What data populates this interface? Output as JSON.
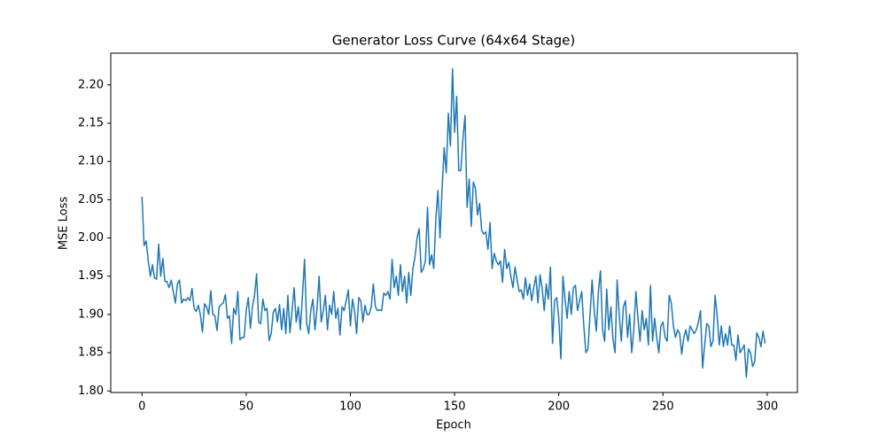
{
  "chart_data": {
    "type": "line",
    "title": "Generator Loss Curve (64x64 Stage)",
    "x_label": "Epoch",
    "y_label": "MSE Loss",
    "x": [
      0,
      1,
      2,
      3,
      4,
      5,
      6,
      7,
      8,
      9,
      10,
      11,
      12,
      13,
      14,
      15,
      16,
      17,
      18,
      19,
      20,
      21,
      22,
      23,
      24,
      25,
      26,
      27,
      28,
      29,
      30,
      31,
      32,
      33,
      34,
      35,
      36,
      37,
      38,
      39,
      40,
      41,
      42,
      43,
      44,
      45,
      46,
      47,
      48,
      49,
      50,
      51,
      52,
      53,
      54,
      55,
      56,
      57,
      58,
      59,
      60,
      61,
      62,
      63,
      64,
      65,
      66,
      67,
      68,
      69,
      70,
      71,
      72,
      73,
      74,
      75,
      76,
      77,
      78,
      79,
      80,
      81,
      82,
      83,
      84,
      85,
      86,
      87,
      88,
      89,
      90,
      91,
      92,
      93,
      94,
      95,
      96,
      97,
      98,
      99,
      100,
      101,
      102,
      103,
      104,
      105,
      106,
      107,
      108,
      109,
      110,
      111,
      112,
      113,
      114,
      115,
      116,
      117,
      118,
      119,
      120,
      121,
      122,
      123,
      124,
      125,
      126,
      127,
      128,
      129,
      130,
      131,
      132,
      133,
      134,
      135,
      136,
      137,
      138,
      139,
      140,
      141,
      142,
      143,
      144,
      145,
      146,
      147,
      148,
      149,
      150,
      151,
      152,
      153,
      154,
      155,
      156,
      157,
      158,
      159,
      160,
      161,
      162,
      163,
      164,
      165,
      166,
      167,
      168,
      169,
      170,
      171,
      172,
      173,
      174,
      175,
      176,
      177,
      178,
      179,
      180,
      181,
      182,
      183,
      184,
      185,
      186,
      187,
      188,
      189,
      190,
      191,
      192,
      193,
      194,
      195,
      196,
      197,
      198,
      199,
      200,
      201,
      202,
      203,
      204,
      205,
      206,
      207,
      208,
      209,
      210,
      211,
      212,
      213,
      214,
      215,
      216,
      217,
      218,
      219,
      220,
      221,
      222,
      223,
      224,
      225,
      226,
      227,
      228,
      229,
      230,
      231,
      232,
      233,
      234,
      235,
      236,
      237,
      238,
      239,
      240,
      241,
      242,
      243,
      244,
      245,
      246,
      247,
      248,
      249,
      250,
      251,
      252,
      253,
      254,
      255,
      256,
      257,
      258,
      259,
      260,
      261,
      262,
      263,
      264,
      265,
      266,
      267,
      268,
      269,
      270,
      271,
      272,
      273,
      274,
      275,
      276,
      277,
      278,
      279,
      280,
      281,
      282,
      283,
      284,
      285,
      286,
      287,
      288,
      289,
      290,
      291,
      292,
      293,
      294,
      295,
      296,
      297,
      298,
      299
    ],
    "series": [
      {
        "color": "#1f77b4",
        "values": [
          2.054,
          1.99,
          1.996,
          1.97,
          1.95,
          1.965,
          1.948,
          1.946,
          1.992,
          1.95,
          1.973,
          1.943,
          1.943,
          1.935,
          1.945,
          1.93,
          1.915,
          1.94,
          1.945,
          1.915,
          1.92,
          1.918,
          1.922,
          1.918,
          1.934,
          1.908,
          1.904,
          1.912,
          1.9,
          1.877,
          1.914,
          1.91,
          1.9,
          1.931,
          1.9,
          1.898,
          1.879,
          1.91,
          1.913,
          1.915,
          1.926,
          1.895,
          1.898,
          1.862,
          1.908,
          1.9,
          1.93,
          1.867,
          1.87,
          1.87,
          1.905,
          1.922,
          1.882,
          1.91,
          1.925,
          1.953,
          1.89,
          1.888,
          1.92,
          1.905,
          1.908,
          1.866,
          1.875,
          1.903,
          1.908,
          1.89,
          1.913,
          1.88,
          1.908,
          1.875,
          1.925,
          1.876,
          1.905,
          1.935,
          1.89,
          1.91,
          1.88,
          1.925,
          1.972,
          1.888,
          1.875,
          1.905,
          1.92,
          1.88,
          1.908,
          1.95,
          1.89,
          1.905,
          1.925,
          1.88,
          1.912,
          1.9,
          1.93,
          1.895,
          1.908,
          1.873,
          1.91,
          1.905,
          1.918,
          1.932,
          1.885,
          1.92,
          1.905,
          1.875,
          1.922,
          1.918,
          1.89,
          1.912,
          1.9,
          1.9,
          1.91,
          1.94,
          1.91,
          1.905,
          1.906,
          1.905,
          1.928,
          1.925,
          1.93,
          1.92,
          1.972,
          1.935,
          1.95,
          1.925,
          1.965,
          1.93,
          1.95,
          1.915,
          1.955,
          1.925,
          1.96,
          1.975,
          2.0,
          2.012,
          1.955,
          1.96,
          1.97,
          2.04,
          1.965,
          1.978,
          1.96,
          2.025,
          2.062,
          2.0,
          2.065,
          2.118,
          2.085,
          2.163,
          2.12,
          2.221,
          2.138,
          2.185,
          2.088,
          2.088,
          2.13,
          2.16,
          2.04,
          2.077,
          2.015,
          2.073,
          2.065,
          2.03,
          2.045,
          2.01,
          2.005,
          2.008,
          1.985,
          2.02,
          1.96,
          1.98,
          1.97,
          1.965,
          1.97,
          1.942,
          1.985,
          1.96,
          1.968,
          1.95,
          1.935,
          1.962,
          1.945,
          1.93,
          1.932,
          1.92,
          1.948,
          1.925,
          1.94,
          1.918,
          1.935,
          1.95,
          1.915,
          1.952,
          1.935,
          1.905,
          1.94,
          1.92,
          1.962,
          1.862,
          1.918,
          1.922,
          1.895,
          1.842,
          1.95,
          1.92,
          1.895,
          1.93,
          1.9,
          1.935,
          1.938,
          1.905,
          1.918,
          1.93,
          1.885,
          1.85,
          1.855,
          1.9,
          1.945,
          1.905,
          1.878,
          1.93,
          1.957,
          1.88,
          1.865,
          1.933,
          1.88,
          1.91,
          1.868,
          1.85,
          1.945,
          1.9,
          1.865,
          1.91,
          1.918,
          1.87,
          1.9,
          1.85,
          1.88,
          1.93,
          1.895,
          1.865,
          1.905,
          1.88,
          1.895,
          1.86,
          1.938,
          1.865,
          1.895,
          1.87,
          1.85,
          1.885,
          1.89,
          1.87,
          1.865,
          1.925,
          1.915,
          1.885,
          1.87,
          1.88,
          1.875,
          1.848,
          1.87,
          1.88,
          1.865,
          1.885,
          1.88,
          1.875,
          1.88,
          1.89,
          1.905,
          1.83,
          1.86,
          1.888,
          1.885,
          1.858,
          1.865,
          1.925,
          1.898,
          1.86,
          1.885,
          1.858,
          1.875,
          1.86,
          1.885,
          1.86,
          1.86,
          1.84,
          1.873,
          1.85,
          1.855,
          1.86,
          1.818,
          1.855,
          1.85,
          1.832,
          1.838,
          1.876,
          1.87,
          1.858,
          1.878,
          1.862
        ]
      }
    ],
    "xlim": [
      -15,
      314.5
    ],
    "ylim": [
      1.798,
      2.2415
    ],
    "xticks": [
      0,
      50,
      100,
      150,
      200,
      250,
      300
    ],
    "yticks": [
      {
        "value": 1.8,
        "label": "1.80"
      },
      1.85,
      {
        "value": 1.9,
        "label": "1.90"
      },
      1.95,
      {
        "value": 2.0,
        "label": "2.00"
      },
      2.05,
      {
        "value": 2.1,
        "label": "2.10"
      },
      2.15,
      {
        "value": 2.2,
        "label": "2.20"
      }
    ]
  }
}
